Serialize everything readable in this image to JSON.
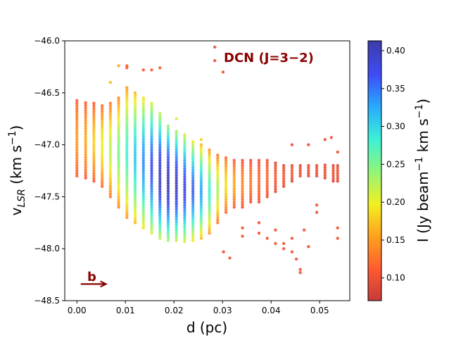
{
  "chart_data": {
    "type": "scatter",
    "title": "",
    "annotation": "DCN (J=3−2)",
    "panel_label": "b",
    "xlabel": "d (pc)",
    "ylabel": "v_LSR (km s^-1)",
    "xlim": [
      -0.0025,
      0.0562
    ],
    "ylim": [
      -48.5,
      -46.0
    ],
    "xticks": [
      0.0,
      0.01,
      0.02,
      0.03,
      0.04,
      0.05
    ],
    "xtick_labels": [
      "0.00",
      "0.01",
      "0.02",
      "0.03",
      "0.04",
      "0.05"
    ],
    "yticks": [
      -48.5,
      -48.0,
      -47.5,
      -47.0,
      -46.5,
      -46.0
    ],
    "ytick_labels": [
      "−48.5",
      "−48.0",
      "−47.5",
      "−47.0",
      "−46.5",
      "−46.0"
    ],
    "colorbar": {
      "label": "I (Jy beam^-1 km s^-1)",
      "range": [
        0.07,
        0.413
      ],
      "ticks": [
        0.1,
        0.15,
        0.2,
        0.25,
        0.3,
        0.35,
        0.4
      ],
      "tick_labels": [
        "0.10",
        "0.15",
        "0.20",
        "0.25",
        "0.30",
        "0.35",
        "0.40"
      ],
      "colormap": "jet_r"
    },
    "arrow": {
      "from_x": 0.0008,
      "to_x": 0.006,
      "y": -48.34
    },
    "columns": [
      {
        "x": 0.0,
        "v_top": -46.57,
        "v_bot": -47.3,
        "I_center": 0.15,
        "I_edge": 0.11
      },
      {
        "x": 0.0018,
        "v_top": -46.58,
        "v_bot": -47.32,
        "I_center": 0.16,
        "I_edge": 0.11
      },
      {
        "x": 0.0035,
        "v_top": -46.6,
        "v_bot": -47.35,
        "I_center": 0.18,
        "I_edge": 0.11
      },
      {
        "x": 0.0052,
        "v_top": -46.62,
        "v_bot": -47.4,
        "I_center": 0.2,
        "I_edge": 0.12
      },
      {
        "x": 0.0069,
        "v_top": -46.6,
        "v_bot": -47.5,
        "I_center": 0.22,
        "I_edge": 0.13
      },
      {
        "x": 0.0086,
        "v_top": -46.55,
        "v_bot": -47.6,
        "I_center": 0.25,
        "I_edge": 0.14
      },
      {
        "x": 0.0103,
        "v_top": -46.45,
        "v_bot": -47.7,
        "I_center": 0.28,
        "I_edge": 0.15
      },
      {
        "x": 0.012,
        "v_top": -46.5,
        "v_bot": -47.75,
        "I_center": 0.31,
        "I_edge": 0.17
      },
      {
        "x": 0.0137,
        "v_top": -46.55,
        "v_bot": -47.8,
        "I_center": 0.34,
        "I_edge": 0.19
      },
      {
        "x": 0.0154,
        "v_top": -46.6,
        "v_bot": -47.85,
        "I_center": 0.37,
        "I_edge": 0.21
      },
      {
        "x": 0.0171,
        "v_top": -46.7,
        "v_bot": -47.9,
        "I_center": 0.4,
        "I_edge": 0.22
      },
      {
        "x": 0.0188,
        "v_top": -46.8,
        "v_bot": -47.92,
        "I_center": 0.41,
        "I_edge": 0.23
      },
      {
        "x": 0.0205,
        "v_top": -46.85,
        "v_bot": -47.92,
        "I_center": 0.4,
        "I_edge": 0.22
      },
      {
        "x": 0.0222,
        "v_top": -46.9,
        "v_bot": -47.93,
        "I_center": 0.38,
        "I_edge": 0.21
      },
      {
        "x": 0.0239,
        "v_top": -46.95,
        "v_bot": -47.92,
        "I_center": 0.36,
        "I_edge": 0.19
      },
      {
        "x": 0.0256,
        "v_top": -47.0,
        "v_bot": -47.9,
        "I_center": 0.33,
        "I_edge": 0.17
      },
      {
        "x": 0.0273,
        "v_top": -47.05,
        "v_bot": -47.85,
        "I_center": 0.28,
        "I_edge": 0.15
      },
      {
        "x": 0.029,
        "v_top": -47.1,
        "v_bot": -47.75,
        "I_center": 0.23,
        "I_edge": 0.13
      },
      {
        "x": 0.0307,
        "v_top": -47.12,
        "v_bot": -47.65,
        "I_center": 0.19,
        "I_edge": 0.12
      },
      {
        "x": 0.0324,
        "v_top": -47.15,
        "v_bot": -47.6,
        "I_center": 0.16,
        "I_edge": 0.11
      },
      {
        "x": 0.0341,
        "v_top": -47.15,
        "v_bot": -47.6,
        "I_center": 0.14,
        "I_edge": 0.1
      },
      {
        "x": 0.0358,
        "v_top": -47.15,
        "v_bot": -47.55,
        "I_center": 0.13,
        "I_edge": 0.1
      },
      {
        "x": 0.0375,
        "v_top": -47.15,
        "v_bot": -47.55,
        "I_center": 0.12,
        "I_edge": 0.1
      },
      {
        "x": 0.0392,
        "v_top": -47.15,
        "v_bot": -47.5,
        "I_center": 0.12,
        "I_edge": 0.1
      },
      {
        "x": 0.0409,
        "v_top": -47.17,
        "v_bot": -47.45,
        "I_center": 0.11,
        "I_edge": 0.09
      },
      {
        "x": 0.0426,
        "v_top": -47.2,
        "v_bot": -47.4,
        "I_center": 0.11,
        "I_edge": 0.09
      },
      {
        "x": 0.0443,
        "v_top": -47.18,
        "v_bot": -47.35,
        "I_center": 0.11,
        "I_edge": 0.09
      },
      {
        "x": 0.046,
        "v_top": -47.2,
        "v_bot": -47.3,
        "I_center": 0.1,
        "I_edge": 0.09
      },
      {
        "x": 0.0477,
        "v_top": -47.18,
        "v_bot": -47.3,
        "I_center": 0.1,
        "I_edge": 0.09
      },
      {
        "x": 0.0494,
        "v_top": -47.18,
        "v_bot": -47.3,
        "I_center": 0.1,
        "I_edge": 0.09
      },
      {
        "x": 0.0511,
        "v_top": -47.18,
        "v_bot": -47.32,
        "I_center": 0.1,
        "I_edge": 0.09
      },
      {
        "x": 0.0528,
        "v_top": -47.2,
        "v_bot": -47.35,
        "I_center": 0.1,
        "I_edge": 0.09
      },
      {
        "x": 0.0537,
        "v_top": -47.2,
        "v_bot": -47.35,
        "I_center": 0.1,
        "I_edge": 0.09
      }
    ],
    "extra_points": [
      {
        "x": 0.0069,
        "y": -46.4,
        "I": 0.17
      },
      {
        "x": 0.0086,
        "y": -46.24,
        "I": 0.16
      },
      {
        "x": 0.0103,
        "y": -46.24,
        "I": 0.11
      },
      {
        "x": 0.0103,
        "y": -46.26,
        "I": 0.11
      },
      {
        "x": 0.0137,
        "y": -46.28,
        "I": 0.11
      },
      {
        "x": 0.0154,
        "y": -46.28,
        "I": 0.11
      },
      {
        "x": 0.0171,
        "y": -46.26,
        "I": 0.11
      },
      {
        "x": 0.0284,
        "y": -46.06,
        "I": 0.1
      },
      {
        "x": 0.0284,
        "y": -46.19,
        "I": 0.1
      },
      {
        "x": 0.0301,
        "y": -46.3,
        "I": 0.1
      },
      {
        "x": 0.0205,
        "y": -46.75,
        "I": 0.21
      },
      {
        "x": 0.0256,
        "y": -46.95,
        "I": 0.18
      },
      {
        "x": 0.0302,
        "y": -48.03,
        "I": 0.1
      },
      {
        "x": 0.0315,
        "y": -48.09,
        "I": 0.1
      },
      {
        "x": 0.0341,
        "y": -47.88,
        "I": 0.1
      },
      {
        "x": 0.0375,
        "y": -47.85,
        "I": 0.1
      },
      {
        "x": 0.0392,
        "y": -47.9,
        "I": 0.1
      },
      {
        "x": 0.0409,
        "y": -47.82,
        "I": 0.1
      },
      {
        "x": 0.0409,
        "y": -47.95,
        "I": 0.1
      },
      {
        "x": 0.0426,
        "y": -47.95,
        "I": 0.1
      },
      {
        "x": 0.0426,
        "y": -48.0,
        "I": 0.1
      },
      {
        "x": 0.0443,
        "y": -47.9,
        "I": 0.1
      },
      {
        "x": 0.0443,
        "y": -48.03,
        "I": 0.1
      },
      {
        "x": 0.0452,
        "y": -48.1,
        "I": 0.1
      },
      {
        "x": 0.046,
        "y": -48.2,
        "I": 0.1
      },
      {
        "x": 0.046,
        "y": -48.23,
        "I": 0.1
      },
      {
        "x": 0.0468,
        "y": -47.82,
        "I": 0.1
      },
      {
        "x": 0.0477,
        "y": -47.98,
        "I": 0.1
      },
      {
        "x": 0.0494,
        "y": -47.65,
        "I": 0.1
      },
      {
        "x": 0.0494,
        "y": -47.58,
        "I": 0.1
      },
      {
        "x": 0.0511,
        "y": -46.95,
        "I": 0.1
      },
      {
        "x": 0.0524,
        "y": -46.93,
        "I": 0.1
      },
      {
        "x": 0.0537,
        "y": -47.07,
        "I": 0.1
      },
      {
        "x": 0.0537,
        "y": -47.8,
        "I": 0.1
      },
      {
        "x": 0.0537,
        "y": -47.9,
        "I": 0.1
      },
      {
        "x": 0.0443,
        "y": -47.0,
        "I": 0.1
      },
      {
        "x": 0.0477,
        "y": -47.0,
        "I": 0.1
      },
      {
        "x": 0.0341,
        "y": -47.8,
        "I": 0.1
      },
      {
        "x": 0.0375,
        "y": -47.75,
        "I": 0.1
      }
    ]
  }
}
